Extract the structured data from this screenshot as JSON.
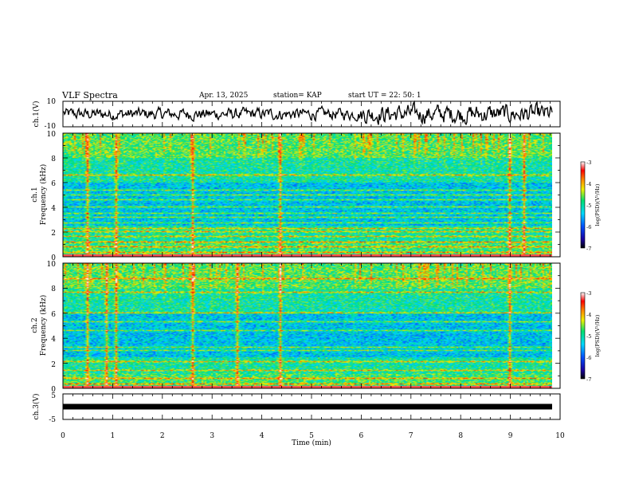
{
  "header": {
    "title": "VLF Spectra",
    "date": "Apr. 13, 2025",
    "station": "station= KAP",
    "start": "start  UT  =   22: 50: 1"
  },
  "chart_data": [
    {
      "type": "line",
      "name": "ch1-waveform",
      "ylabel": "ch.1(V)",
      "ylim": [
        -10,
        10
      ],
      "yticks": [
        "10",
        "-10"
      ],
      "xlim": [
        0,
        10
      ]
    },
    {
      "type": "heatmap",
      "name": "ch1-spectrogram",
      "ylabel_line1": "ch.1",
      "ylabel_line2": "Frequency  (kHz)",
      "ylim": [
        0,
        10
      ],
      "yticks": [
        "0",
        "2",
        "4",
        "6",
        "8",
        "10"
      ],
      "xlim": [
        0,
        9.8
      ],
      "colorbar": {
        "label": "log(PSD)(V²/Hz)",
        "range": [
          -7,
          -3
        ],
        "ticks": [
          "-3",
          "-4",
          "-5",
          "-6",
          "-7"
        ]
      },
      "bands_khz": [
        0.3,
        0.8,
        1.2,
        1.6,
        2.0,
        2.3,
        2.7,
        3.2,
        3.5,
        4.0,
        4.6,
        5.0,
        5.4,
        6.6
      ],
      "impulse_min": [
        0.49,
        1.05,
        2.6,
        4.35,
        8.98,
        9.25
      ]
    },
    {
      "type": "heatmap",
      "name": "ch2-spectrogram",
      "ylabel_line1": "ch.2",
      "ylabel_line2": "Frequency  (kHz)",
      "ylim": [
        0,
        10
      ],
      "yticks": [
        "0",
        "2",
        "4",
        "6",
        "8",
        "10"
      ],
      "xlim": [
        0,
        9.8
      ],
      "colorbar": {
        "label": "log(PSD)(V²/Hz)",
        "range": [
          -7,
          -3
        ],
        "ticks": [
          "-3",
          "-4",
          "-5",
          "-6",
          "-7"
        ]
      },
      "bands_khz": [
        0.3,
        0.8,
        1.4,
        2.1,
        3.0,
        3.3,
        4.6,
        5.3,
        6.0,
        7.7,
        8.8
      ],
      "impulse_min": [
        0.49,
        0.85,
        1.05,
        2.6,
        3.5,
        4.35,
        8.98
      ]
    },
    {
      "type": "line",
      "name": "ch3-waveform",
      "ylabel": "ch.3(V)",
      "ylim": [
        -5,
        5
      ],
      "yticks": [
        "5",
        "-5"
      ],
      "xlim": [
        0,
        10
      ],
      "level": 0
    }
  ],
  "xaxis": {
    "label": "Time  (min)",
    "ticks": [
      "0",
      "1",
      "2",
      "3",
      "4",
      "5",
      "6",
      "7",
      "8",
      "9",
      "10"
    ]
  }
}
